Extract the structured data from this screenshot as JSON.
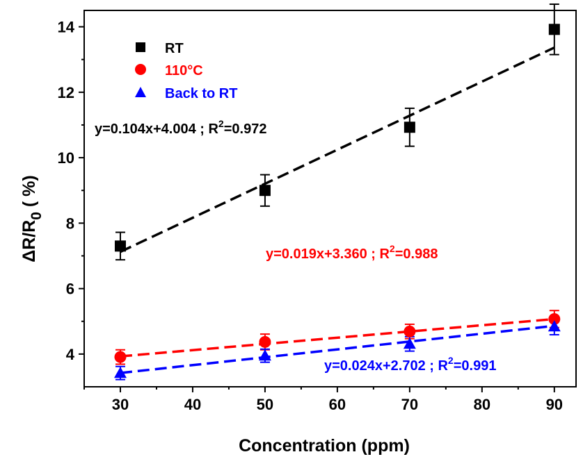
{
  "chart_data": {
    "type": "scatter",
    "xlabel": "Concentration (ppm)",
    "ylabel": "ΔR/R",
    "ylabel_sub": "0",
    "ylabel_suffix": " ( %)",
    "xlim": [
      25,
      93
    ],
    "ylim": [
      3.0,
      14.5
    ],
    "xticks": [
      30,
      40,
      50,
      60,
      70,
      80,
      90
    ],
    "yticks": [
      4,
      6,
      8,
      10,
      12,
      14
    ],
    "grid": false,
    "legend_position": "top-left",
    "series": [
      {
        "name": "RT",
        "marker": "square",
        "color": "#000000",
        "x": [
          30,
          50,
          70,
          90
        ],
        "y": [
          7.3,
          9.0,
          10.93,
          13.92
        ],
        "yerr": [
          0.42,
          0.48,
          0.58,
          0.77
        ],
        "fit": {
          "slope": 0.104,
          "intercept": 4.004,
          "equation": "y=0.104x+4.004  ; R",
          "r2_sup": "2",
          "r2_value": "=0.972"
        }
      },
      {
        "name": "110°C",
        "marker": "circle",
        "color": "#ff0000",
        "x": [
          30,
          50,
          70,
          90
        ],
        "y": [
          3.91,
          4.37,
          4.69,
          5.07
        ],
        "yerr": [
          0.22,
          0.24,
          0.22,
          0.26
        ],
        "fit": {
          "slope": 0.019,
          "intercept": 3.36,
          "equation": "y=0.019x+3.360  ; R",
          "r2_sup": "2",
          "r2_value": "=0.988"
        }
      },
      {
        "name": "Back to RT",
        "marker": "triangle",
        "color": "#0000ff",
        "x": [
          30,
          50,
          70,
          90
        ],
        "y": [
          3.42,
          3.95,
          4.31,
          4.84
        ],
        "yerr": [
          0.2,
          0.2,
          0.22,
          0.25
        ],
        "fit": {
          "slope": 0.024,
          "intercept": 2.702,
          "equation": "y=0.024x+2.702  ; R",
          "r2_sup": "2",
          "r2_value": "=0.991"
        }
      }
    ]
  }
}
